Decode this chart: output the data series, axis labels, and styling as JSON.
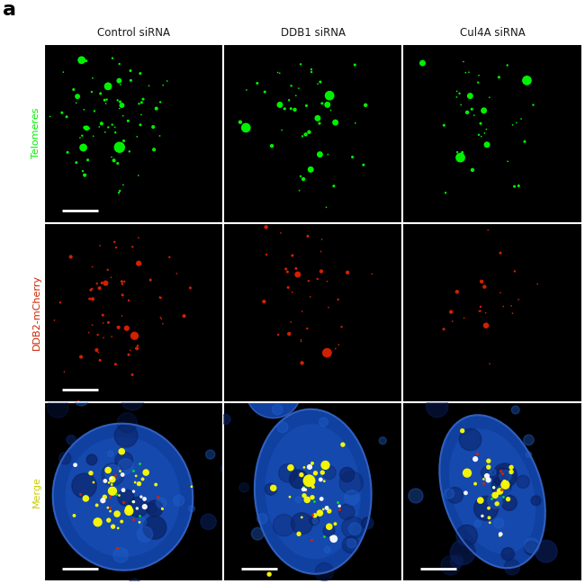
{
  "panel_label": "a",
  "col_labels": [
    "Control siRNA",
    "DDB1 siRNA",
    "Cul4A siRNA"
  ],
  "row_labels": [
    "Telomeres",
    "DDB2-mCherry",
    "Merge"
  ],
  "row_label_colors": [
    "#00ee00",
    "#cc2200",
    "#cccc00"
  ],
  "background_color": "#000000",
  "outer_bg": "#ffffff",
  "col_label_color": "#1a1a1a",
  "panel_label_color": "#000000",
  "grid_line_color": "#ffffff",
  "figsize": [
    6.5,
    6.49
  ],
  "dpi": 100
}
